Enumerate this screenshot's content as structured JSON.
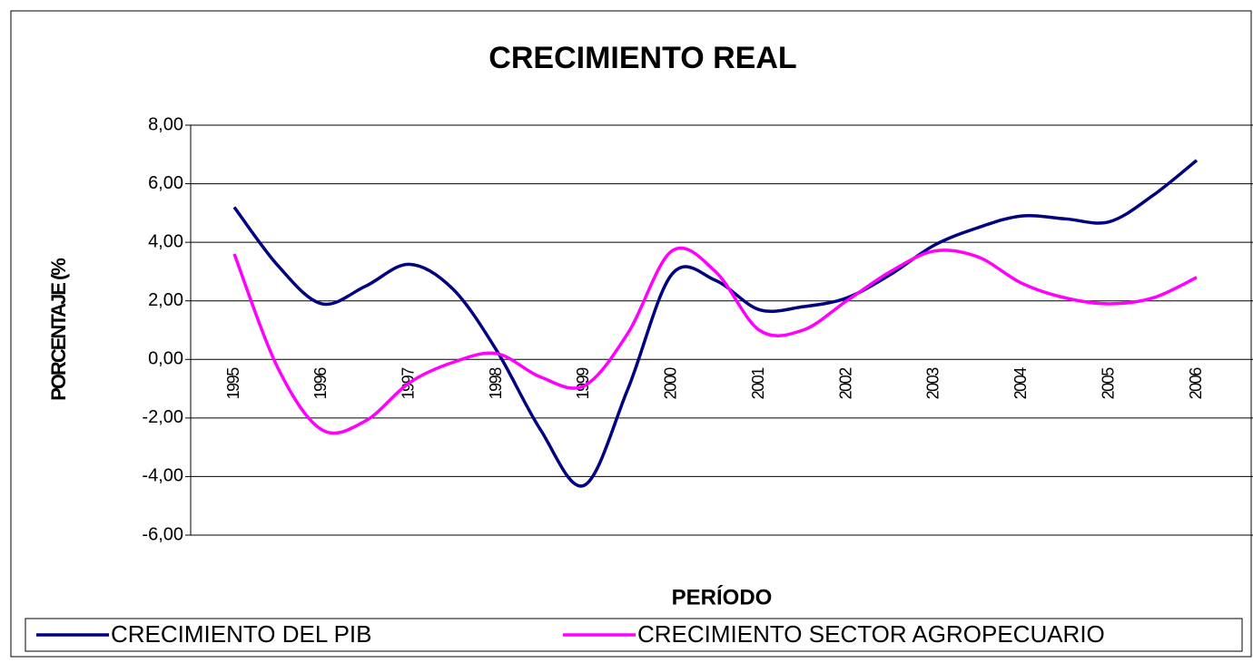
{
  "chart_data": {
    "type": "line",
    "title": "CRECIMIENTO REAL",
    "y_label": "PORCENTAJE (%",
    "x_label": "PERÍODO",
    "categories": [
      "1995",
      null,
      "1996",
      null,
      "1997",
      null,
      "1998",
      null,
      "1999",
      null,
      "2000",
      null,
      "2001",
      null,
      "2002",
      null,
      "2003",
      null,
      "2004",
      null,
      "2005",
      null,
      "2006"
    ],
    "series": [
      {
        "name": "CRECIMIENTO DEL PIB",
        "color": "#000080",
        "values": [
          5.2,
          3.2,
          1.9,
          2.5,
          3.25,
          2.4,
          0.3,
          -2.4,
          -4.3,
          -1.0,
          2.9,
          2.7,
          1.7,
          1.8,
          2.1,
          2.9,
          3.9,
          4.5,
          4.9,
          4.8,
          4.7,
          5.6,
          6.8
        ]
      },
      {
        "name": "CRECIMIENTO SECTOR AGROPECUARIO",
        "color": "#ff00ff",
        "values": [
          3.6,
          -0.3,
          -2.4,
          -2.1,
          -0.8,
          -0.1,
          0.2,
          -0.6,
          -0.9,
          0.9,
          3.7,
          3.0,
          1.0,
          1.0,
          2.0,
          3.0,
          3.7,
          3.5,
          2.6,
          2.1,
          1.9,
          2.1,
          2.8
        ]
      }
    ],
    "ylim": [
      -6,
      8
    ],
    "yticks": [
      {
        "value": -6,
        "label": "-6,00"
      },
      {
        "value": -4,
        "label": "-4,00"
      },
      {
        "value": -2,
        "label": "-2,00"
      },
      {
        "value": 0,
        "label": "0,00"
      },
      {
        "value": 2,
        "label": "2,00"
      },
      {
        "value": 4,
        "label": "4,00"
      },
      {
        "value": 6,
        "label": "6,00"
      },
      {
        "value": 8,
        "label": "8,00"
      }
    ],
    "grid": true,
    "legend": "bottom"
  }
}
